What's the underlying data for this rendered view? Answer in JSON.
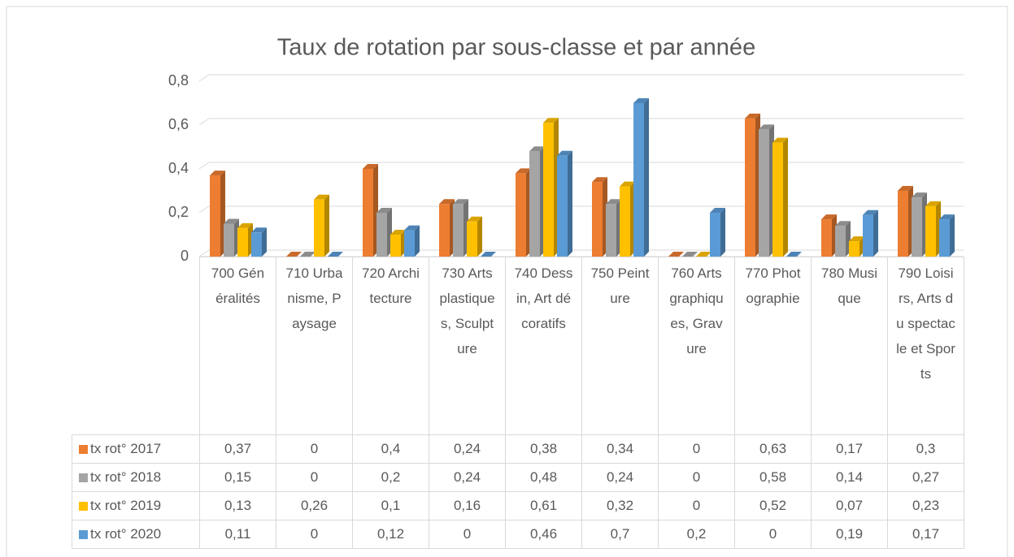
{
  "chart_data": {
    "type": "bar",
    "title": "Taux de rotation par sous-classe et par année",
    "categories": [
      "700 Généralités",
      "710 Urbanisme, Paysage",
      "720 Architecture",
      "730 Arts plastiques, Sculpture",
      "740 Dessin, Art décoratifs",
      "750 Peinture",
      "760 Arts graphiques, Gravure",
      "770 Photographie",
      "780 Musique",
      "790 Loisirs, Arts du spectacle et Sports"
    ],
    "series": [
      {
        "name": "tx rot° 2017",
        "color": "#ED7D31",
        "values": [
          0.37,
          0,
          0.4,
          0.24,
          0.38,
          0.34,
          0,
          0.63,
          0.17,
          0.3
        ],
        "value_labels": [
          "0,37",
          "0",
          "0,4",
          "0,24",
          "0,38",
          "0,34",
          "0",
          "0,63",
          "0,17",
          "0,3"
        ]
      },
      {
        "name": "tx rot° 2018",
        "color": "#A5A5A5",
        "values": [
          0.15,
          0,
          0.2,
          0.24,
          0.48,
          0.24,
          0,
          0.58,
          0.14,
          0.27
        ],
        "value_labels": [
          "0,15",
          "0",
          "0,2",
          "0,24",
          "0,48",
          "0,24",
          "0",
          "0,58",
          "0,14",
          "0,27"
        ]
      },
      {
        "name": "tx rot° 2019",
        "color": "#FFC000",
        "values": [
          0.13,
          0.26,
          0.1,
          0.16,
          0.61,
          0.32,
          0,
          0.52,
          0.07,
          0.23
        ],
        "value_labels": [
          "0,13",
          "0,26",
          "0,1",
          "0,16",
          "0,61",
          "0,32",
          "0",
          "0,52",
          "0,07",
          "0,23"
        ]
      },
      {
        "name": "tx rot° 2020",
        "color": "#5B9BD5",
        "values": [
          0.11,
          0,
          0.12,
          0,
          0.46,
          0.7,
          0.2,
          0,
          0.19,
          0.17
        ],
        "value_labels": [
          "0,11",
          "0",
          "0,12",
          "0",
          "0,46",
          "0,7",
          "0,2",
          "0",
          "0,19",
          "0,17"
        ]
      }
    ],
    "ylim": [
      0,
      0.8
    ],
    "yticks": [
      0,
      {
        "value": 0.2,
        "label": "0,2"
      },
      {
        "value": 0.4,
        "label": "0,4"
      },
      {
        "value": 0.6,
        "label": "0,6"
      },
      {
        "value": 0.8,
        "label": "0,8"
      }
    ],
    "grid": true
  }
}
